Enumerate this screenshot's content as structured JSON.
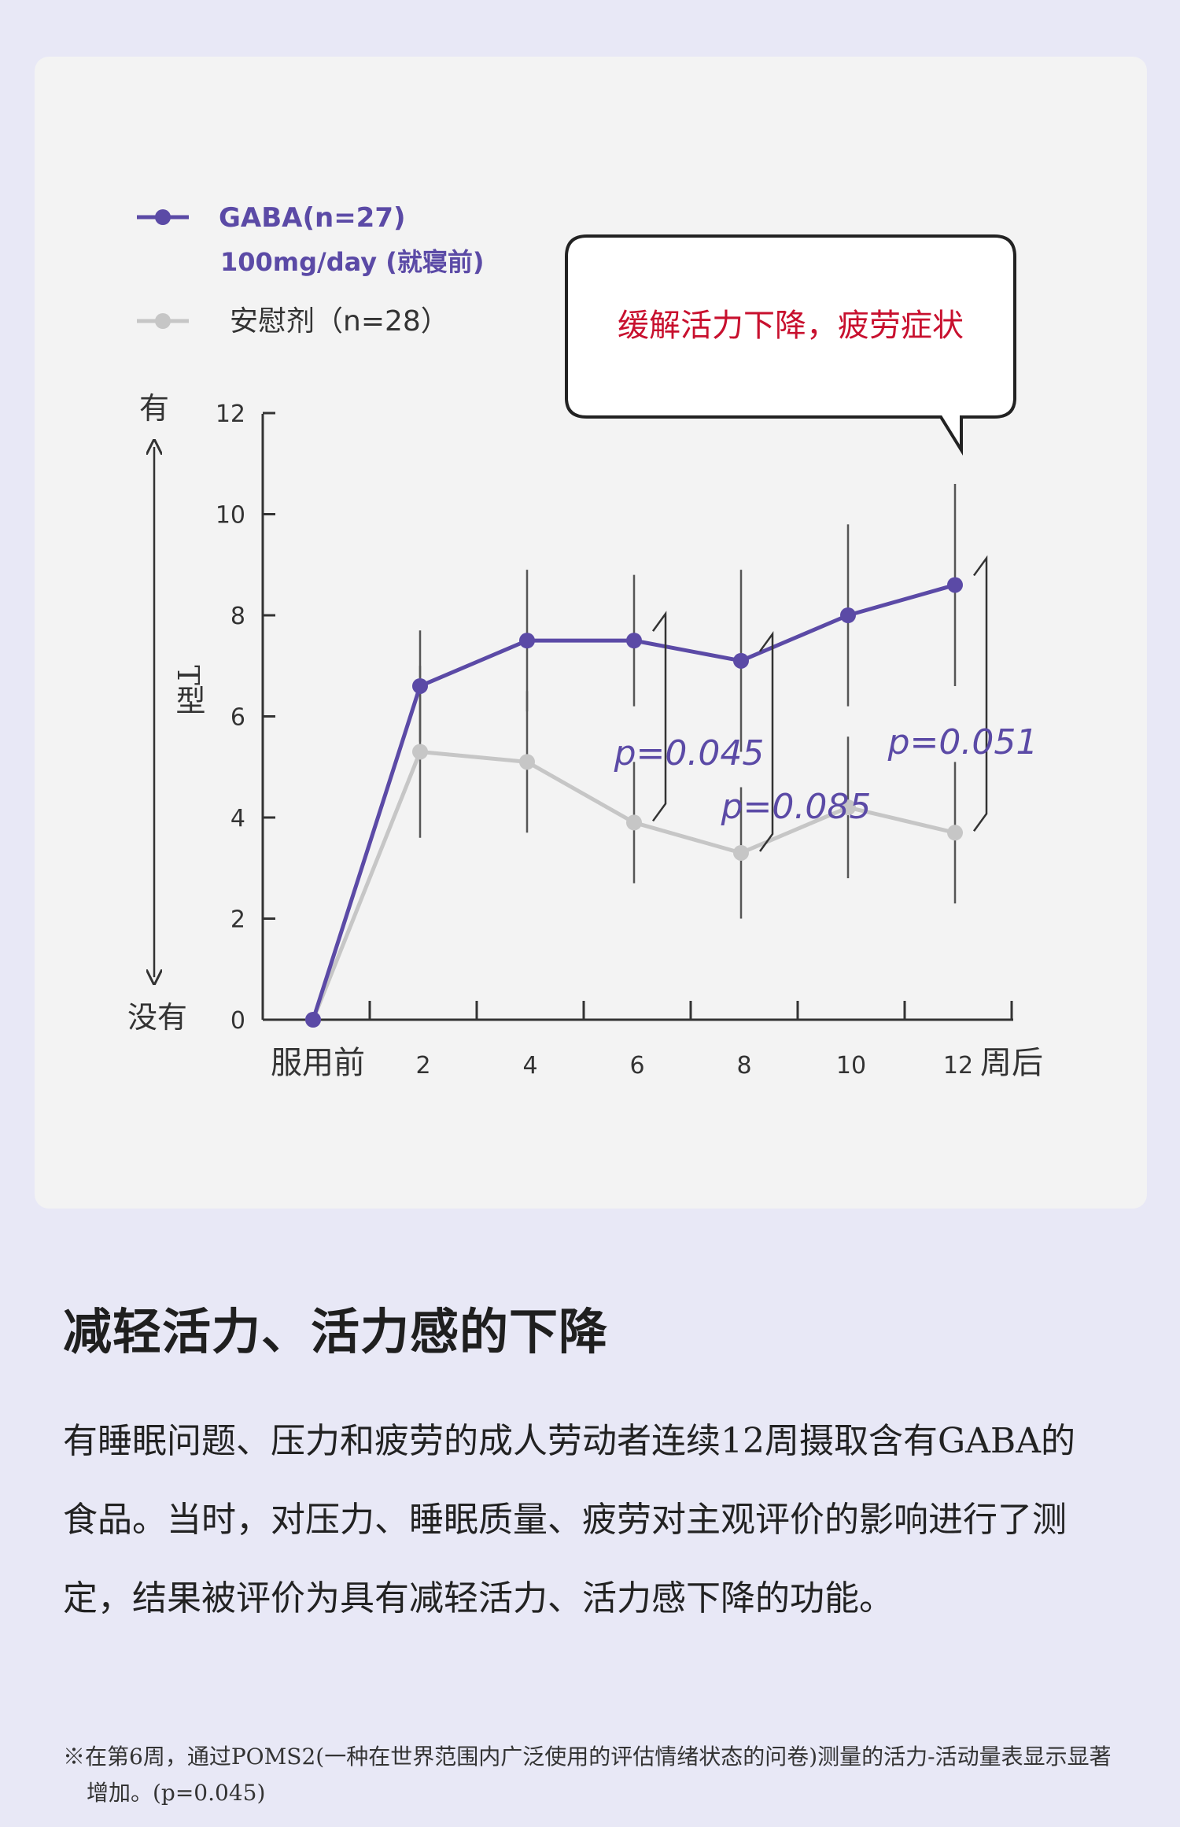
{
  "chart_data": {
    "type": "line",
    "x": [
      "服用前",
      "2",
      "4",
      "6",
      "8",
      "10",
      "12"
    ],
    "x_unit_label": "周后",
    "y_ticks": [
      "0",
      "2",
      "4",
      "6",
      "8",
      "10",
      "12"
    ],
    "ylim": [
      0,
      12
    ],
    "y_axis_label": "T型",
    "y_top_label": "有",
    "y_bottom_label": "没有",
    "series": [
      {
        "name": "GABA(n=27)",
        "name_line2": "100mg/day (就寝前)",
        "color": "#5b4aa6",
        "values": [
          0,
          6.6,
          7.5,
          7.5,
          7.1,
          8.0,
          8.6
        ],
        "error": [
          0,
          1.1,
          1.4,
          1.3,
          1.8,
          1.8,
          2.0
        ]
      },
      {
        "name": "安慰剂（n=28）",
        "color": "#c6c6c6",
        "values": [
          0,
          5.3,
          5.1,
          3.9,
          3.3,
          4.2,
          3.7
        ],
        "error": [
          0,
          1.7,
          1.4,
          1.2,
          1.3,
          1.4,
          1.4
        ]
      }
    ],
    "annotations": [
      {
        "text": "p=0.045",
        "week": "6"
      },
      {
        "text": "p=0.085",
        "week": "8"
      },
      {
        "text": "p=0.051",
        "week": "12"
      }
    ],
    "callout": "缓解活力下降，疲劳症状",
    "callout_color": "#c8102e",
    "grid": false
  },
  "heading": "减轻活力、活力感的下降",
  "body": "有睡眠问题、压力和疲劳的成人劳动者连续12周摄取含有GABA的食品。当时，对压力、睡眠质量、疲劳对主观评价的影响进行了测定，结果被评价为具有减轻活力、活力感下降的功能。",
  "footnote": "※在第6周，通过POMS2(一种在世界范围内广泛使用的评估情绪状态的问卷)测量的活力-活动量表显示显著增加。(p=0.045)"
}
